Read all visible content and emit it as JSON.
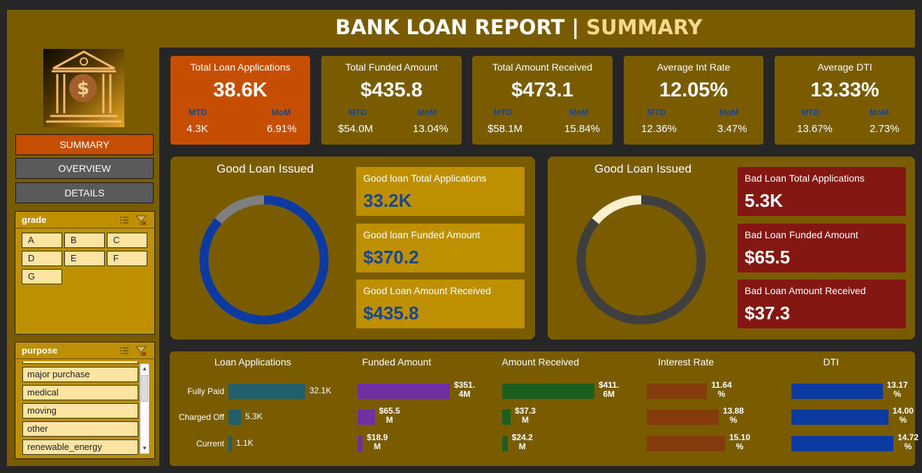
{
  "header": {
    "title_main": "BANK LOAN REPORT | ",
    "title_accent": "SUMMARY"
  },
  "nav": {
    "summary": "SUMMARY",
    "overview": "OVERVIEW",
    "details": "DETAILS"
  },
  "slicers": {
    "grade": {
      "title": "grade",
      "items": [
        "A",
        "B",
        "C",
        "D",
        "E",
        "F",
        "G"
      ]
    },
    "purpose": {
      "title": "purpose",
      "items": [
        "major purchase",
        "medical",
        "moving",
        "other",
        "renewable_energy"
      ]
    }
  },
  "kpis": [
    {
      "label": "Total Loan Applications",
      "value": "38.6K",
      "mtd_label": "MTD",
      "mom_label": "MoM",
      "mtd": "4.3K",
      "mom": "6.91%"
    },
    {
      "label": "Total Funded Amount",
      "value": "$435.8",
      "mtd_label": "MTD",
      "mom_label": "MoM",
      "mtd": "$54.0M",
      "mom": "13.04%"
    },
    {
      "label": "Total Amount Received",
      "value": "$473.1",
      "mtd_label": "MTD",
      "mom_label": "MoM",
      "mtd": "$58.1M",
      "mom": "15.84%"
    },
    {
      "label": "Average Int Rate",
      "value": "12.05%",
      "mtd_label": "MTD",
      "mom_label": "MoM",
      "mtd": "12.36%",
      "mom": "3.47%"
    },
    {
      "label": "Average DTI",
      "value": "13.33%",
      "mtd_label": "MTD",
      "mom_label": "MoM",
      "mtd": "13.67%",
      "mom": "2.73%"
    }
  ],
  "good_panel": {
    "title": "Good Loan Issued",
    "percent": 86.2,
    "ring_color": "#0d3a9e",
    "rest_color": "#7f7f7f",
    "stats": [
      {
        "label": "Good loan Total Applications",
        "value": "33.2K"
      },
      {
        "label": "Good loan Funded Amount",
        "value": "$370.2"
      },
      {
        "label": "Good Loan Amount Received",
        "value": "$435.8"
      }
    ]
  },
  "bad_panel": {
    "title": "Good Loan Issued",
    "percent": 13.8,
    "ring_color": "#fdf0cc",
    "rest_color": "#3f3f3f",
    "stats": [
      {
        "label": "Bad Loan Total Applications",
        "value": "5.3K"
      },
      {
        "label": "Bad Loan Funded Amount",
        "value": "$65.5"
      },
      {
        "label": "Bad Loan Amount Received",
        "value": "$37.3"
      }
    ]
  },
  "chart_data": {
    "type": "bar",
    "categories": [
      "Fully Paid",
      "Charged Off",
      "Current"
    ],
    "series": [
      {
        "name": "Loan Applications",
        "color": "#215f6b",
        "values": [
          32.1,
          5.3,
          1.1
        ],
        "labels": [
          "32.1K",
          "5.3K",
          "1.1K"
        ]
      },
      {
        "name": "Funded Amount",
        "color": "#7030a0",
        "values": [
          351.4,
          65.5,
          18.9
        ],
        "labels": [
          [
            "$351.",
            "4M"
          ],
          [
            "$65.5",
            "M"
          ],
          [
            "$18.9",
            "M"
          ]
        ]
      },
      {
        "name": "Amount Received",
        "color": "#1b5e20",
        "values": [
          411.6,
          37.3,
          24.2
        ],
        "labels": [
          [
            "$411.",
            "6M"
          ],
          [
            "$37.3",
            "M"
          ],
          [
            "$24.2",
            "M"
          ]
        ]
      },
      {
        "name": "Interest Rate",
        "color": "#843c0c",
        "values": [
          11.64,
          13.88,
          15.1
        ],
        "labels": [
          [
            "11.64",
            "%"
          ],
          [
            "13.88",
            "%"
          ],
          [
            "15.10",
            "%"
          ]
        ]
      },
      {
        "name": "DTI",
        "color": "#0d3a9e",
        "values": [
          13.17,
          14.0,
          14.72
        ],
        "labels": [
          [
            "13.17",
            "%"
          ],
          [
            "14.00",
            "%"
          ],
          [
            "14.72",
            "%"
          ]
        ]
      }
    ]
  }
}
